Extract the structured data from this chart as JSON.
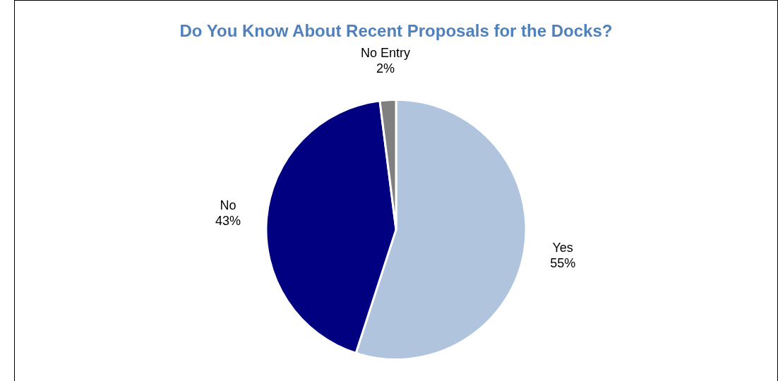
{
  "chart_data": {
    "type": "pie",
    "title": "Do You Know About Recent Proposals for the Docks?",
    "categories": [
      "Yes",
      "No",
      "No Entry"
    ],
    "values": [
      55,
      43,
      2
    ],
    "value_labels": [
      "55%",
      "43%",
      "2%"
    ],
    "colors": [
      "#b0c4de",
      "#000080",
      "#808080"
    ],
    "legend": false
  }
}
